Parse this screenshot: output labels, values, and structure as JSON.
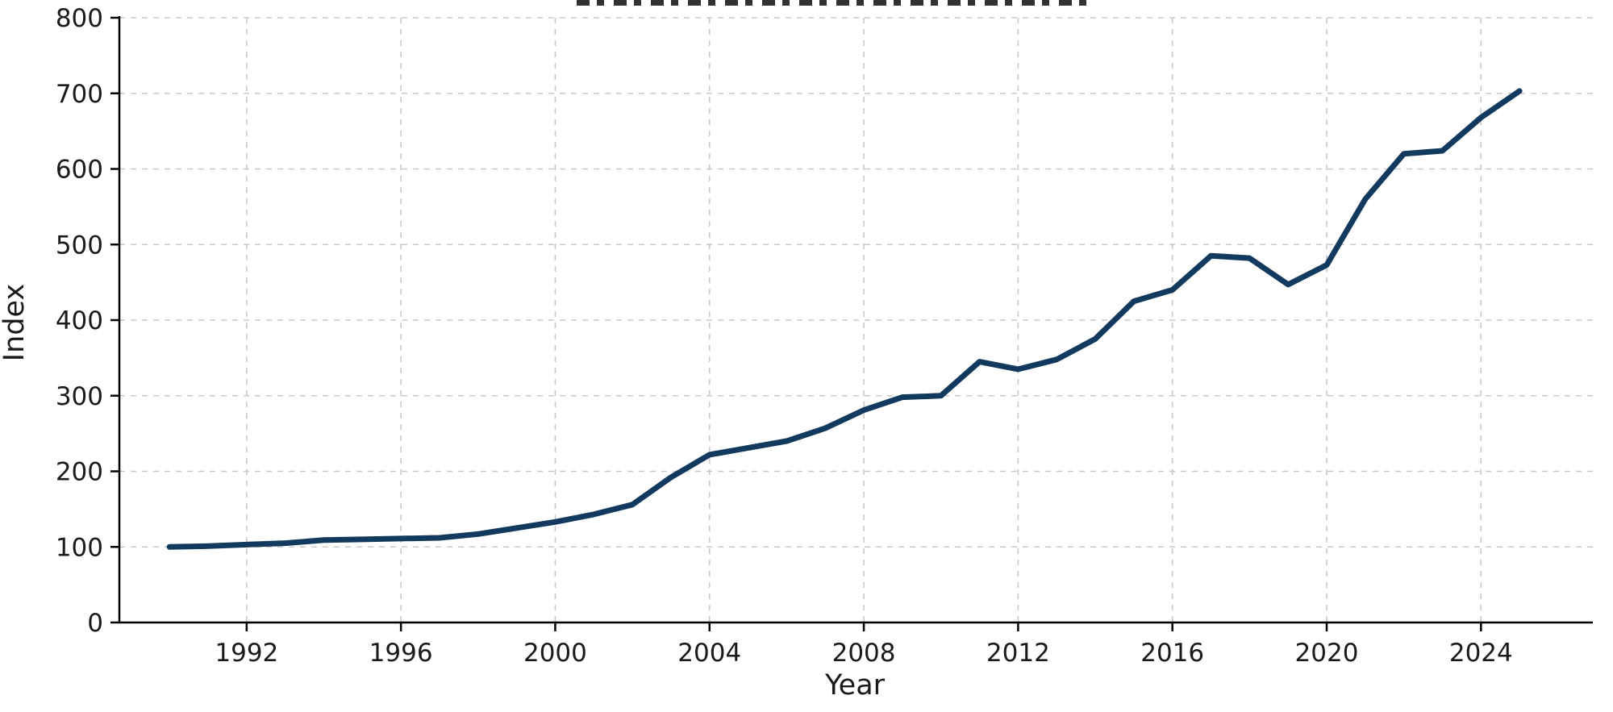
{
  "chart_data": {
    "type": "line",
    "title": "",
    "xlabel": "Year",
    "ylabel": "Index",
    "x": [
      1990,
      1991,
      1992,
      1993,
      1994,
      1995,
      1996,
      1997,
      1998,
      1999,
      2000,
      2001,
      2002,
      2003,
      2004,
      2005,
      2006,
      2007,
      2008,
      2009,
      2010,
      2011,
      2012,
      2013,
      2014,
      2015,
      2016,
      2017,
      2018,
      2019,
      2020,
      2021,
      2022,
      2023,
      2024,
      2025
    ],
    "series": [
      {
        "name": "Index",
        "values": [
          100,
          101,
          103,
          105,
          109,
          110,
          111,
          112,
          117,
          125,
          133,
          143,
          156,
          192,
          222,
          231,
          240,
          257,
          281,
          298,
          300,
          345,
          335,
          348,
          375,
          425,
          440,
          485,
          482,
          447,
          473,
          560,
          620,
          624,
          668,
          703
        ],
        "color": "#123a5f",
        "linewidth": 7
      }
    ],
    "xlim": [
      1988.7,
      2026.9
    ],
    "ylim": [
      0,
      800
    ],
    "xticks": [
      1992,
      1996,
      2000,
      2004,
      2008,
      2012,
      2016,
      2020,
      2024
    ],
    "yticks": [
      0,
      100,
      200,
      300,
      400,
      500,
      600,
      700,
      800
    ],
    "grid": true,
    "grid_style": "dashed",
    "legend": "none"
  },
  "styles": {
    "line_color": "#123a5f",
    "grid_color": "#c9c9c9",
    "spine_color": "#000000",
    "text_color": "#1a1a1a",
    "background": "#ffffff"
  }
}
